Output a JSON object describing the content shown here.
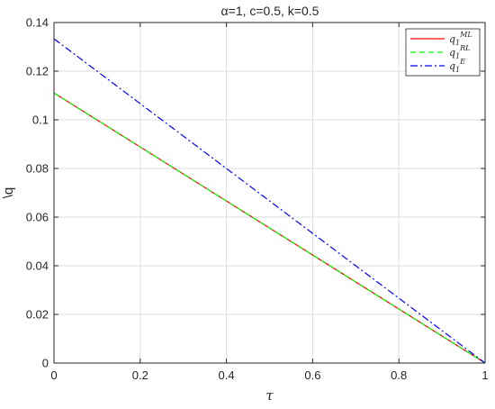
{
  "chart_data": {
    "type": "line",
    "title": "α=1, c=0.5, k=0.5",
    "xlabel": "τ",
    "ylabel": "\\q",
    "xlim": [
      0,
      1
    ],
    "ylim": [
      0,
      0.14
    ],
    "x_ticks": [
      "0",
      "0.2",
      "0.4",
      "0.6",
      "0.8",
      "1"
    ],
    "y_ticks": [
      "0",
      "0.02",
      "0.04",
      "0.06",
      "0.08",
      "0.1",
      "0.12",
      "0.14"
    ],
    "grid": true,
    "legend_position": "top-right",
    "series": [
      {
        "name": "q1^ML",
        "base": "q",
        "sub": "1",
        "sup": "ML",
        "color": "#ff0000",
        "style": "solid",
        "x": [
          0,
          1
        ],
        "y": [
          0.111,
          0
        ]
      },
      {
        "name": "q1^RL",
        "base": "q",
        "sub": "1",
        "sup": "RL",
        "color": "#00ff00",
        "style": "dashed",
        "x": [
          0,
          1
        ],
        "y": [
          0.111,
          0
        ]
      },
      {
        "name": "q1^E",
        "base": "q",
        "sub": "1",
        "sup": "E",
        "color": "#0000ff",
        "style": "dashdot",
        "x": [
          0,
          1
        ],
        "y": [
          0.1333,
          0
        ]
      }
    ]
  }
}
